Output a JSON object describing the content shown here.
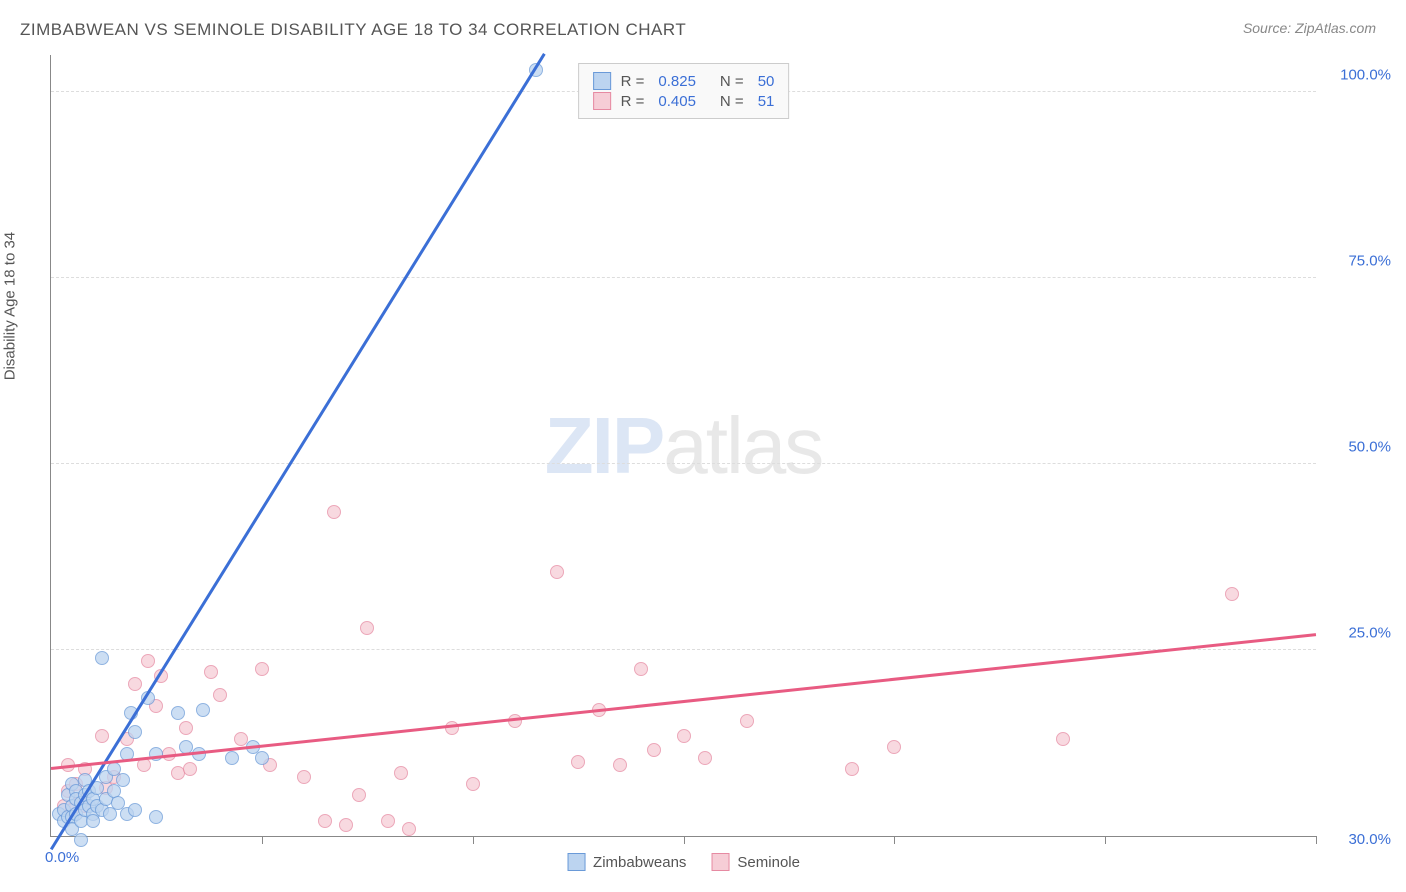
{
  "title": "ZIMBABWEAN VS SEMINOLE DISABILITY AGE 18 TO 34 CORRELATION CHART",
  "source": "Source: ZipAtlas.com",
  "ylabel": "Disability Age 18 to 34",
  "watermark_a": "ZIP",
  "watermark_b": "atlas",
  "colors": {
    "series1_fill": "#bcd4f0",
    "series1_stroke": "#6a9ad8",
    "series2_fill": "#f6cdd6",
    "series2_stroke": "#e68aa2",
    "trend1": "#3b6fd6",
    "trend2": "#e85b82",
    "tick_label": "#3b6fd6",
    "xlabel_origin": "#3b6fd6",
    "xlabel_end": "#3b6fd6"
  },
  "legend": {
    "rows": [
      {
        "r_label": "R =",
        "r": "0.825",
        "n_label": "N =",
        "n": "50"
      },
      {
        "r_label": "R =",
        "r": "0.405",
        "n_label": "N =",
        "n": "51"
      }
    ]
  },
  "bottom_legend": [
    "Zimbabweans",
    "Seminole"
  ],
  "axes": {
    "xlim": [
      0,
      30
    ],
    "ylim": [
      0,
      105
    ],
    "yticks": [
      {
        "v": 25,
        "label": "25.0%"
      },
      {
        "v": 50,
        "label": "50.0%"
      },
      {
        "v": 75,
        "label": "75.0%"
      },
      {
        "v": 100,
        "label": "100.0%"
      }
    ],
    "xticks_major": [
      5,
      10,
      15,
      20,
      25,
      30
    ],
    "xlabel_origin": "0.0%",
    "xlabel_end": "30.0%"
  },
  "marker_radius": 7,
  "trend_lines": {
    "s1": {
      "x1": 0,
      "y1": -2,
      "x2": 11.7,
      "y2": 105
    },
    "s2": {
      "x1": 0,
      "y1": 9,
      "x2": 30,
      "y2": 27
    }
  },
  "series1_points": [
    {
      "x": 0.2,
      "y": 3.0
    },
    {
      "x": 0.3,
      "y": 2.0
    },
    {
      "x": 0.3,
      "y": 3.5
    },
    {
      "x": 0.4,
      "y": 5.5
    },
    {
      "x": 0.4,
      "y": 2.5
    },
    {
      "x": 0.5,
      "y": 4.0
    },
    {
      "x": 0.5,
      "y": 7.0
    },
    {
      "x": 0.5,
      "y": 2.5
    },
    {
      "x": 0.5,
      "y": 1.0
    },
    {
      "x": 0.6,
      "y": 6.0
    },
    {
      "x": 0.6,
      "y": 3.0
    },
    {
      "x": 0.6,
      "y": 5.0
    },
    {
      "x": 0.7,
      "y": 2.0
    },
    {
      "x": 0.7,
      "y": 4.5
    },
    {
      "x": 0.7,
      "y": -0.5
    },
    {
      "x": 0.8,
      "y": 3.5
    },
    {
      "x": 0.8,
      "y": 5.5
    },
    {
      "x": 0.8,
      "y": 7.5
    },
    {
      "x": 0.9,
      "y": 6.0
    },
    {
      "x": 0.9,
      "y": 4.0
    },
    {
      "x": 1.0,
      "y": 3.0
    },
    {
      "x": 1.0,
      "y": 2.0
    },
    {
      "x": 1.0,
      "y": 5.0
    },
    {
      "x": 1.1,
      "y": 6.5
    },
    {
      "x": 1.1,
      "y": 4.0
    },
    {
      "x": 1.2,
      "y": 24.0
    },
    {
      "x": 1.2,
      "y": 3.5
    },
    {
      "x": 1.3,
      "y": 8.0
    },
    {
      "x": 1.3,
      "y": 5.0
    },
    {
      "x": 1.4,
      "y": 3.0
    },
    {
      "x": 1.5,
      "y": 9.0
    },
    {
      "x": 1.5,
      "y": 6.0
    },
    {
      "x": 1.6,
      "y": 4.5
    },
    {
      "x": 1.7,
      "y": 7.5
    },
    {
      "x": 1.8,
      "y": 11.0
    },
    {
      "x": 1.8,
      "y": 3.0
    },
    {
      "x": 1.9,
      "y": 16.5
    },
    {
      "x": 2.0,
      "y": 14.0
    },
    {
      "x": 2.0,
      "y": 3.5
    },
    {
      "x": 2.3,
      "y": 18.5
    },
    {
      "x": 2.5,
      "y": 2.5
    },
    {
      "x": 2.5,
      "y": 11.0
    },
    {
      "x": 3.0,
      "y": 16.5
    },
    {
      "x": 3.2,
      "y": 12.0
    },
    {
      "x": 3.5,
      "y": 11.0
    },
    {
      "x": 3.6,
      "y": 17.0
    },
    {
      "x": 4.3,
      "y": 10.5
    },
    {
      "x": 4.8,
      "y": 12.0
    },
    {
      "x": 5.0,
      "y": 10.5
    },
    {
      "x": 11.5,
      "y": 103.0
    }
  ],
  "series2_points": [
    {
      "x": 0.3,
      "y": 4.0
    },
    {
      "x": 0.4,
      "y": 6.0
    },
    {
      "x": 0.4,
      "y": 9.5
    },
    {
      "x": 0.5,
      "y": 3.5
    },
    {
      "x": 0.6,
      "y": 7.0
    },
    {
      "x": 0.7,
      "y": 5.0
    },
    {
      "x": 0.8,
      "y": 9.0
    },
    {
      "x": 0.8,
      "y": 4.0
    },
    {
      "x": 1.2,
      "y": 13.5
    },
    {
      "x": 1.3,
      "y": 6.5
    },
    {
      "x": 1.5,
      "y": 8.0
    },
    {
      "x": 1.8,
      "y": 13.0
    },
    {
      "x": 2.0,
      "y": 20.5
    },
    {
      "x": 2.2,
      "y": 9.5
    },
    {
      "x": 2.3,
      "y": 23.5
    },
    {
      "x": 2.5,
      "y": 17.5
    },
    {
      "x": 2.6,
      "y": 21.5
    },
    {
      "x": 2.8,
      "y": 11.0
    },
    {
      "x": 3.0,
      "y": 8.5
    },
    {
      "x": 3.2,
      "y": 14.5
    },
    {
      "x": 3.3,
      "y": 9.0
    },
    {
      "x": 3.8,
      "y": 22.0
    },
    {
      "x": 4.0,
      "y": 19.0
    },
    {
      "x": 4.5,
      "y": 13.0
    },
    {
      "x": 5.0,
      "y": 22.5
    },
    {
      "x": 5.2,
      "y": 9.5
    },
    {
      "x": 6.0,
      "y": 8.0
    },
    {
      "x": 6.5,
      "y": 2.0
    },
    {
      "x": 6.7,
      "y": 43.5
    },
    {
      "x": 7.0,
      "y": 1.5
    },
    {
      "x": 7.3,
      "y": 5.5
    },
    {
      "x": 7.5,
      "y": 28.0
    },
    {
      "x": 8.0,
      "y": 2.0
    },
    {
      "x": 8.3,
      "y": 8.5
    },
    {
      "x": 8.5,
      "y": 1.0
    },
    {
      "x": 9.5,
      "y": 14.5
    },
    {
      "x": 10.0,
      "y": 7.0
    },
    {
      "x": 11.0,
      "y": 15.5
    },
    {
      "x": 12.0,
      "y": 35.5
    },
    {
      "x": 12.5,
      "y": 10.0
    },
    {
      "x": 13.0,
      "y": 17.0
    },
    {
      "x": 13.5,
      "y": 9.5
    },
    {
      "x": 14.0,
      "y": 22.5
    },
    {
      "x": 14.3,
      "y": 11.5
    },
    {
      "x": 15.0,
      "y": 13.5
    },
    {
      "x": 15.5,
      "y": 10.5
    },
    {
      "x": 16.5,
      "y": 15.5
    },
    {
      "x": 19.0,
      "y": 9.0
    },
    {
      "x": 20.0,
      "y": 12.0
    },
    {
      "x": 24.0,
      "y": 13.0
    },
    {
      "x": 28.0,
      "y": 32.5
    }
  ]
}
